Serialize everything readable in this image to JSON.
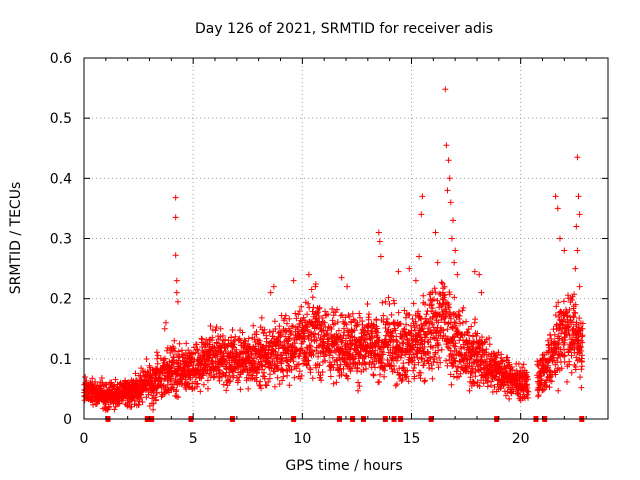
{
  "chart_data": {
    "type": "scatter",
    "title": "Day 126 of 2021, SRMTID for receiver adis",
    "xlabel": "GPS time / hours",
    "ylabel": "SRMTID / TECUs",
    "xlim": [
      0,
      24
    ],
    "ylim": [
      0,
      0.6
    ],
    "xticks": [
      0,
      5,
      10,
      15,
      20
    ],
    "yticks": [
      0,
      0.1,
      0.2,
      0.3,
      0.4,
      0.5,
      0.6
    ],
    "xtick_labels": [
      "0",
      "5",
      "10",
      "15",
      "20"
    ],
    "ytick_labels": [
      "0",
      "0.1",
      "0.2",
      "0.3",
      "0.4",
      "0.5",
      "0.6"
    ],
    "grid": true,
    "marker": "+",
    "marker_color": "#ff0000",
    "envelope_hours": [
      0,
      0.5,
      1,
      1.5,
      2,
      2.5,
      3,
      3.5,
      4,
      4.5,
      5,
      5.5,
      6,
      6.5,
      7,
      7.5,
      8,
      8.5,
      9,
      9.5,
      10,
      10.5,
      11,
      11.5,
      12,
      12.5,
      13,
      13.5,
      14,
      14.5,
      15,
      15.5,
      16,
      16.5,
      17,
      17.5,
      18,
      18.5,
      19,
      19.5,
      20,
      20.5,
      21,
      21.5,
      22,
      22.5,
      22.8
    ],
    "envelope_median": [
      0.05,
      0.045,
      0.04,
      0.04,
      0.045,
      0.05,
      0.06,
      0.07,
      0.08,
      0.08,
      0.085,
      0.09,
      0.1,
      0.1,
      0.1,
      0.1,
      0.1,
      0.11,
      0.11,
      0.12,
      0.13,
      0.14,
      0.13,
      0.12,
      0.13,
      0.12,
      0.12,
      0.12,
      0.13,
      0.12,
      0.12,
      0.13,
      0.15,
      0.17,
      0.13,
      0.11,
      0.1,
      0.09,
      0.08,
      0.07,
      0.06,
      0.06,
      0.07,
      0.11,
      0.15,
      0.14,
      0.12
    ],
    "envelope_spread": [
      0.02,
      0.02,
      0.02,
      0.02,
      0.02,
      0.025,
      0.03,
      0.035,
      0.04,
      0.035,
      0.035,
      0.04,
      0.045,
      0.045,
      0.04,
      0.04,
      0.045,
      0.05,
      0.05,
      0.05,
      0.055,
      0.06,
      0.055,
      0.05,
      0.055,
      0.05,
      0.05,
      0.05,
      0.06,
      0.05,
      0.055,
      0.06,
      0.07,
      0.08,
      0.06,
      0.05,
      0.045,
      0.04,
      0.035,
      0.03,
      0.025,
      0.025,
      0.03,
      0.05,
      0.06,
      0.06,
      0.05
    ],
    "peaks": [
      {
        "x": 4.2,
        "y": 0.368
      },
      {
        "x": 4.2,
        "y": 0.335
      },
      {
        "x": 4.2,
        "y": 0.272
      },
      {
        "x": 4.25,
        "y": 0.23
      },
      {
        "x": 4.25,
        "y": 0.21
      },
      {
        "x": 4.3,
        "y": 0.195
      },
      {
        "x": 3.7,
        "y": 0.15
      },
      {
        "x": 3.75,
        "y": 0.16
      },
      {
        "x": 8.55,
        "y": 0.21
      },
      {
        "x": 8.7,
        "y": 0.22
      },
      {
        "x": 9.6,
        "y": 0.23
      },
      {
        "x": 10.3,
        "y": 0.24
      },
      {
        "x": 10.6,
        "y": 0.22
      },
      {
        "x": 11.8,
        "y": 0.235
      },
      {
        "x": 12.05,
        "y": 0.22
      },
      {
        "x": 13.5,
        "y": 0.31
      },
      {
        "x": 13.55,
        "y": 0.295
      },
      {
        "x": 13.6,
        "y": 0.27
      },
      {
        "x": 14.4,
        "y": 0.245
      },
      {
        "x": 14.9,
        "y": 0.25
      },
      {
        "x": 15.5,
        "y": 0.37
      },
      {
        "x": 15.45,
        "y": 0.34
      },
      {
        "x": 15.35,
        "y": 0.27
      },
      {
        "x": 15.2,
        "y": 0.23
      },
      {
        "x": 16.1,
        "y": 0.31
      },
      {
        "x": 16.2,
        "y": 0.26
      },
      {
        "x": 16.55,
        "y": 0.548
      },
      {
        "x": 16.6,
        "y": 0.455
      },
      {
        "x": 16.7,
        "y": 0.43
      },
      {
        "x": 16.75,
        "y": 0.4
      },
      {
        "x": 16.65,
        "y": 0.38
      },
      {
        "x": 16.8,
        "y": 0.36
      },
      {
        "x": 16.9,
        "y": 0.33
      },
      {
        "x": 16.85,
        "y": 0.3
      },
      {
        "x": 17.0,
        "y": 0.28
      },
      {
        "x": 16.95,
        "y": 0.26
      },
      {
        "x": 17.1,
        "y": 0.24
      },
      {
        "x": 17.9,
        "y": 0.245
      },
      {
        "x": 18.1,
        "y": 0.24
      },
      {
        "x": 18.2,
        "y": 0.21
      },
      {
        "x": 21.6,
        "y": 0.37
      },
      {
        "x": 21.7,
        "y": 0.35
      },
      {
        "x": 21.8,
        "y": 0.3
      },
      {
        "x": 22.0,
        "y": 0.28
      },
      {
        "x": 22.6,
        "y": 0.435
      },
      {
        "x": 22.65,
        "y": 0.37
      },
      {
        "x": 22.7,
        "y": 0.34
      },
      {
        "x": 22.55,
        "y": 0.32
      },
      {
        "x": 22.6,
        "y": 0.28
      },
      {
        "x": 22.5,
        "y": 0.25
      },
      {
        "x": 22.7,
        "y": 0.22
      }
    ],
    "gap_markers_hours": [
      1.1,
      2.9,
      3.1,
      4.9,
      6.8,
      9.6,
      11.7,
      12.3,
      12.8,
      13.8,
      14.2,
      14.5,
      15.9,
      18.9,
      20.7,
      21.1,
      22.8
    ]
  }
}
